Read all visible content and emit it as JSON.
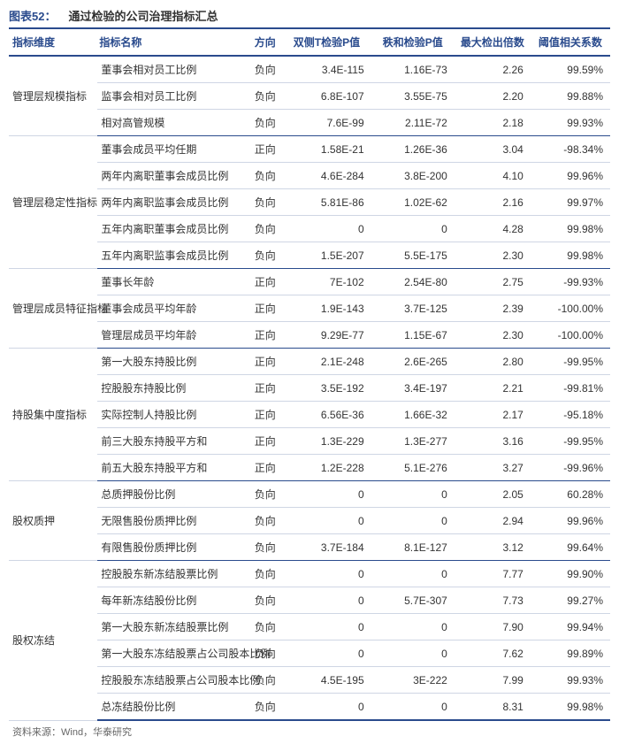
{
  "title_label": "图表52：",
  "title_text": "通过检验的公司治理指标汇总",
  "source": "资料来源：Wind，华泰研究",
  "columns": [
    "指标维度",
    "指标名称",
    "方向",
    "双侧T检验P值",
    "秩和检验P值",
    "最大检出倍数",
    "阈值相关系数"
  ],
  "groups": [
    {
      "category": "管理层规模指标",
      "rows": [
        {
          "name": "董事会相对员工比例",
          "dir": "负向",
          "pt": "3.4E-115",
          "pr": "1.16E-73",
          "max": "2.26",
          "corr": "99.59%"
        },
        {
          "name": "监事会相对员工比例",
          "dir": "负向",
          "pt": "6.8E-107",
          "pr": "3.55E-75",
          "max": "2.20",
          "corr": "99.88%"
        },
        {
          "name": "相对高管规模",
          "dir": "负向",
          "pt": "7.6E-99",
          "pr": "2.11E-72",
          "max": "2.18",
          "corr": "99.93%"
        }
      ]
    },
    {
      "category": "管理层稳定性指标",
      "rows": [
        {
          "name": "董事会成员平均任期",
          "dir": "正向",
          "pt": "1.58E-21",
          "pr": "1.26E-36",
          "max": "3.04",
          "corr": "-98.34%"
        },
        {
          "name": "两年内离职董事会成员比例",
          "dir": "负向",
          "pt": "4.6E-284",
          "pr": "3.8E-200",
          "max": "4.10",
          "corr": "99.96%"
        },
        {
          "name": "两年内离职监事会成员比例",
          "dir": "负向",
          "pt": "5.81E-86",
          "pr": "1.02E-62",
          "max": "2.16",
          "corr": "99.97%"
        },
        {
          "name": "五年内离职董事会成员比例",
          "dir": "负向",
          "pt": "0",
          "pr": "0",
          "max": "4.28",
          "corr": "99.98%"
        },
        {
          "name": "五年内离职监事会成员比例",
          "dir": "负向",
          "pt": "1.5E-207",
          "pr": "5.5E-175",
          "max": "2.30",
          "corr": "99.98%"
        }
      ]
    },
    {
      "category": "管理层成员特征指标",
      "rows": [
        {
          "name": "董事长年龄",
          "dir": "正向",
          "pt": "7E-102",
          "pr": "2.54E-80",
          "max": "2.75",
          "corr": "-99.93%"
        },
        {
          "name": "董事会成员平均年龄",
          "dir": "正向",
          "pt": "1.9E-143",
          "pr": "3.7E-125",
          "max": "2.39",
          "corr": "-100.00%"
        },
        {
          "name": "管理层成员平均年龄",
          "dir": "正向",
          "pt": "9.29E-77",
          "pr": "1.15E-67",
          "max": "2.30",
          "corr": "-100.00%"
        }
      ]
    },
    {
      "category": "持股集中度指标",
      "rows": [
        {
          "name": "第一大股东持股比例",
          "dir": "正向",
          "pt": "2.1E-248",
          "pr": "2.6E-265",
          "max": "2.80",
          "corr": "-99.95%"
        },
        {
          "name": "控股股东持股比例",
          "dir": "正向",
          "pt": "3.5E-192",
          "pr": "3.4E-197",
          "max": "2.21",
          "corr": "-99.81%"
        },
        {
          "name": "实际控制人持股比例",
          "dir": "正向",
          "pt": "6.56E-36",
          "pr": "1.66E-32",
          "max": "2.17",
          "corr": "-95.18%"
        },
        {
          "name": "前三大股东持股平方和",
          "dir": "正向",
          "pt": "1.3E-229",
          "pr": "1.3E-277",
          "max": "3.16",
          "corr": "-99.95%"
        },
        {
          "name": "前五大股东持股平方和",
          "dir": "正向",
          "pt": "1.2E-228",
          "pr": "5.1E-276",
          "max": "3.27",
          "corr": "-99.96%"
        }
      ]
    },
    {
      "category": "股权质押",
      "rows": [
        {
          "name": "总质押股份比例",
          "dir": "负向",
          "pt": "0",
          "pr": "0",
          "max": "2.05",
          "corr": "60.28%"
        },
        {
          "name": "无限售股份质押比例",
          "dir": "负向",
          "pt": "0",
          "pr": "0",
          "max": "2.94",
          "corr": "99.96%"
        },
        {
          "name": "有限售股份质押比例",
          "dir": "负向",
          "pt": "3.7E-184",
          "pr": "8.1E-127",
          "max": "3.12",
          "corr": "99.64%"
        }
      ]
    },
    {
      "category": "股权冻结",
      "rows": [
        {
          "name": "控股股东新冻结股票比例",
          "dir": "负向",
          "pt": "0",
          "pr": "0",
          "max": "7.77",
          "corr": "99.90%"
        },
        {
          "name": "每年新冻结股份比例",
          "dir": "负向",
          "pt": "0",
          "pr": "5.7E-307",
          "max": "7.73",
          "corr": "99.27%"
        },
        {
          "name": "第一大股东新冻结股票比例",
          "dir": "负向",
          "pt": "0",
          "pr": "0",
          "max": "7.90",
          "corr": "99.94%"
        },
        {
          "name": "第一大股东冻结股票占公司股本比例",
          "dir": "负向",
          "pt": "0",
          "pr": "0",
          "max": "7.62",
          "corr": "99.89%"
        },
        {
          "name": "控股股东冻结股票占公司股本比例",
          "dir": "负向",
          "pt": "4.5E-195",
          "pr": "3E-222",
          "max": "7.99",
          "corr": "99.93%"
        },
        {
          "name": "总冻结股份比例",
          "dir": "负向",
          "pt": "0",
          "pr": "0",
          "max": "8.31",
          "corr": "99.98%"
        }
      ]
    }
  ]
}
